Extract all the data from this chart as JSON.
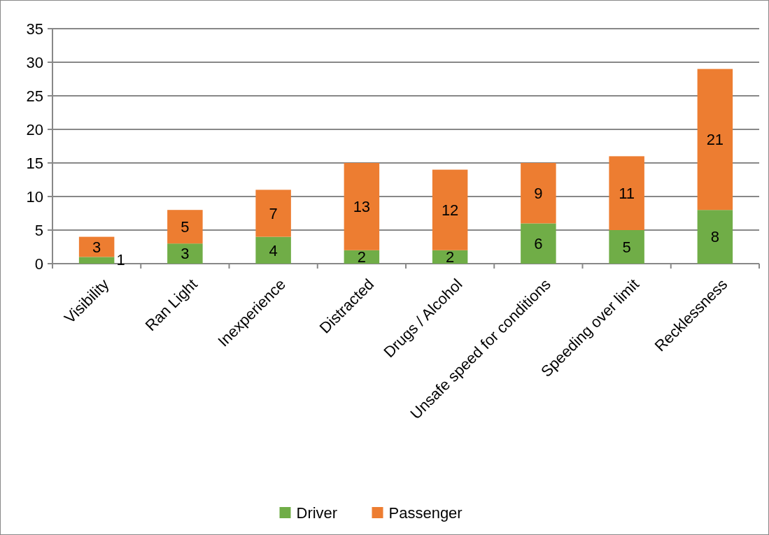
{
  "chart_data": {
    "type": "bar",
    "stacked": true,
    "categories": [
      "Visibility",
      "Ran Light",
      "Inexperience",
      "Distracted",
      "Drugs / Alcohol",
      "Unsafe speed for conditions",
      "Speeding over limit",
      "Recklessness"
    ],
    "series": [
      {
        "name": "Driver",
        "color": "#70ad47",
        "values": [
          1,
          3,
          4,
          2,
          2,
          6,
          5,
          8
        ]
      },
      {
        "name": "Passenger",
        "color": "#ed7d31",
        "values": [
          3,
          5,
          7,
          13,
          12,
          9,
          11,
          21
        ]
      }
    ],
    "ylim": [
      0,
      35
    ],
    "yticks": [
      0,
      5,
      10,
      15,
      20,
      25,
      30,
      35
    ],
    "grid": "y",
    "legend": "bottom",
    "data_labels": true
  }
}
